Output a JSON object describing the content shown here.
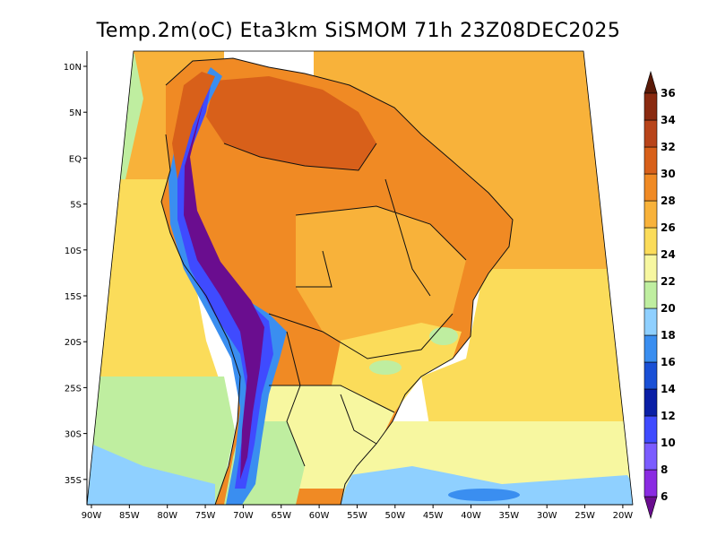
{
  "chart_data": {
    "type": "heatmap",
    "title": "Temp.2m(oC) Eta3km SiSMOM 71h 23Z08DEC2025",
    "variable": "Temp.2m(oC)",
    "model": "Eta3km",
    "run": "SiSMOM",
    "forecast_hour": "71h",
    "valid_time": "23Z08DEC2025",
    "x_ticks": [
      "90W",
      "85W",
      "80W",
      "75W",
      "70W",
      "65W",
      "60W",
      "55W",
      "50W",
      "45W",
      "40W",
      "35W",
      "30W",
      "25W",
      "20W"
    ],
    "y_ticks": [
      "10N",
      "5N",
      "EQ",
      "5S",
      "10S",
      "15S",
      "20S",
      "25S",
      "30S",
      "35S"
    ],
    "colorbar": {
      "levels": [
        "6",
        "8",
        "10",
        "12",
        "14",
        "16",
        "18",
        "20",
        "22",
        "24",
        "26",
        "28",
        "30",
        "32",
        "34",
        "36"
      ],
      "colors": [
        "#6a0d8f",
        "#8a2be2",
        "#7b5cff",
        "#3f4bff",
        "#0a1fa6",
        "#1a50d6",
        "#3a8ef0",
        "#8fd0ff",
        "#bfeea0",
        "#f7f7a0",
        "#fbdc5a",
        "#f8b23a",
        "#f08a24",
        "#d8601a",
        "#b8441a",
        "#8a2a10",
        "#5a1a08"
      ]
    },
    "regions": [
      {
        "name": "ocean-pacific-north",
        "color": "#f8b23a"
      },
      {
        "name": "ocean-pacific-coastal",
        "color": "#fbdc5a"
      },
      {
        "name": "ocean-pacific-south",
        "color": "#bfeea0"
      },
      {
        "name": "ocean-far-south",
        "color": "#8fd0ff"
      },
      {
        "name": "ocean-atlantic-north",
        "color": "#f8b23a"
      },
      {
        "name": "ocean-atlantic-central",
        "color": "#fbdc5a"
      },
      {
        "name": "ocean-atlantic-south",
        "color": "#f7f7a0"
      },
      {
        "name": "land-amazon",
        "color": "#f08a24"
      },
      {
        "name": "land-northwest-hot",
        "color": "#d8601a"
      },
      {
        "name": "land-central",
        "color": "#f8b23a"
      },
      {
        "name": "land-southeast",
        "color": "#fbdc5a"
      },
      {
        "name": "land-south",
        "color": "#f7f7a0"
      },
      {
        "name": "andes-outer",
        "color": "#3a8ef0"
      },
      {
        "name": "andes-mid",
        "color": "#3f4bff"
      },
      {
        "name": "andes-core",
        "color": "#6a0d8f"
      }
    ]
  }
}
